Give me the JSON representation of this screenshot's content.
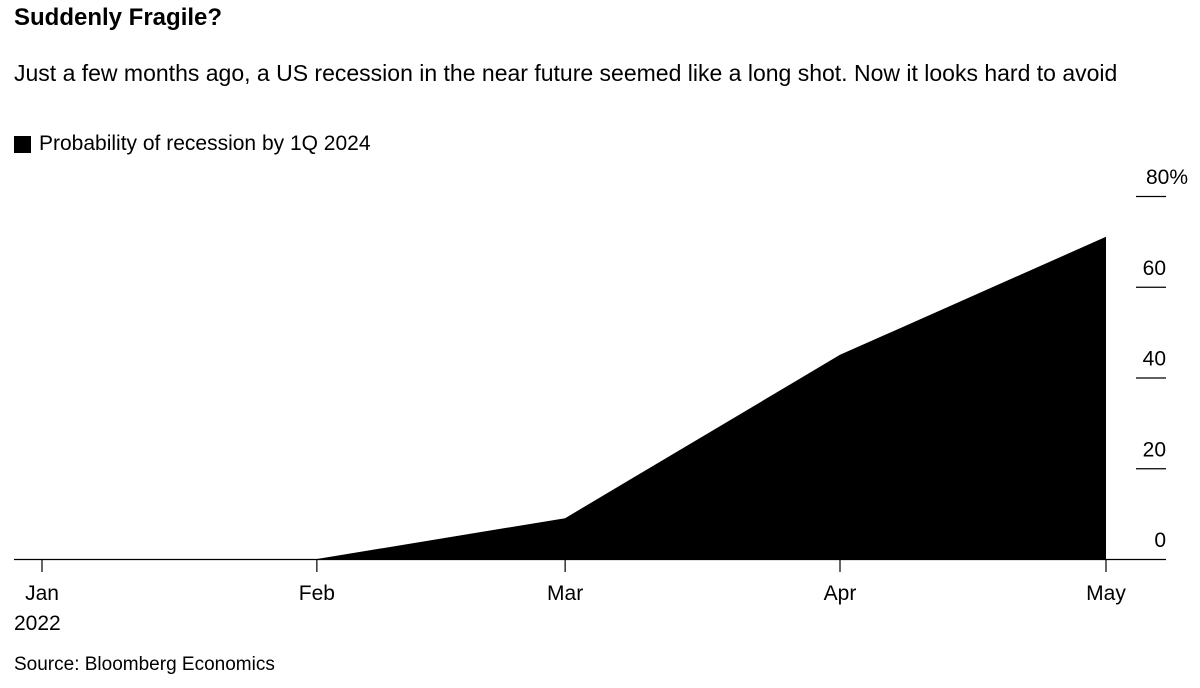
{
  "title": "Suddenly Fragile?",
  "subtitle": "Just a few months ago, a US recession in the near future seemed like a long shot. Now it looks hard to avoid",
  "legend": {
    "label": "Probability of recession by 1Q 2024",
    "color": "#000000"
  },
  "source": "Source: Bloomberg Economics",
  "chart_data": {
    "type": "area",
    "x": [
      "2022-01-01",
      "2022-02-01",
      "2022-03-01",
      "2022-04-01",
      "2022-05-01"
    ],
    "x_tick_labels": [
      "Jan",
      "Feb",
      "Mar",
      "Apr",
      "May"
    ],
    "x_year_label": "2022",
    "series": [
      {
        "name": "Probability of recession by 1Q 2024",
        "values": [
          0,
          0,
          9,
          45,
          71
        ]
      }
    ],
    "y_ticks": [
      0,
      20,
      40,
      60,
      80
    ],
    "y_tick_labels": [
      "0",
      "20",
      "40",
      "60",
      "80%"
    ],
    "ylim": [
      0,
      80
    ],
    "y_axis_side": "right",
    "grid": false,
    "fill_color": "#000000"
  }
}
